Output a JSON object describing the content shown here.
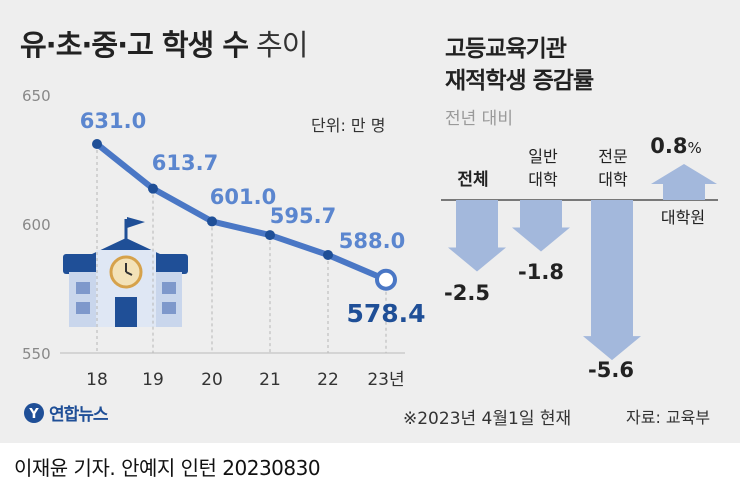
{
  "title": {
    "main": "유·초·중·고 학생 수",
    "sub": "추이"
  },
  "unit": "단위: 만 명",
  "right_panel": {
    "title_lines": [
      "고등교육기관",
      "재적학생 증감률"
    ],
    "subtitle": "전년 대비",
    "bars": [
      {
        "label_lines": [
          "전체"
        ],
        "value": "-2.5"
      },
      {
        "label_lines": [
          "일반",
          "대학"
        ],
        "value": "-1.8"
      },
      {
        "label_lines": [
          "전문",
          "대학"
        ],
        "value": "-5.6"
      },
      {
        "label_lines": [
          "대학원"
        ],
        "value": "0.8",
        "suffix": "%"
      }
    ]
  },
  "footer_note": "※2023년 4월1일 현재",
  "source": "자료: 교육부",
  "logo_text": "연합뉴스",
  "credit": "이재윤 기자. 안예지 인턴  20230830",
  "colors": {
    "line": "#4a77c5",
    "label_light": "#5b86cf",
    "label_dark": "#1f4f97",
    "bar": "#a3b8dc"
  },
  "chart_data": [
    {
      "type": "line",
      "x": [
        "18",
        "19",
        "20",
        "21",
        "22",
        "23년"
      ],
      "values": [
        631.0,
        613.7,
        601.0,
        595.7,
        588.0,
        578.4
      ],
      "labels": [
        "631.0",
        "613.7",
        "601.0",
        "595.7",
        "588.0",
        "578.4"
      ],
      "yticks": [
        "650",
        "600",
        "550"
      ],
      "ylim": [
        550,
        650
      ],
      "grid": "vertical dashed"
    },
    {
      "type": "bar",
      "categories": [
        "전체",
        "일반 대학",
        "전문 대학",
        "대학원"
      ],
      "values": [
        -2.5,
        -1.8,
        -5.6,
        0.8
      ],
      "unit": "%"
    }
  ]
}
